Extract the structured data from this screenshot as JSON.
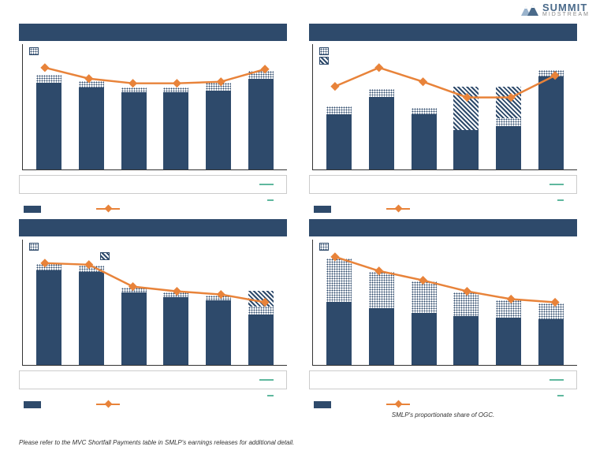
{
  "logo": {
    "summit": "SUMMIT",
    "midstream": "MIDSTREAM"
  },
  "colors": {
    "bar_solid": "#2e4a6b",
    "line": "#e8833a",
    "marker": "#e8833a",
    "accent_green": "#5fb89e"
  },
  "panels": [
    {
      "id": "top-left",
      "legend_top": [
        "dotted"
      ],
      "ymax": 160,
      "bars": [
        {
          "segments": [
            {
              "t": "solid",
              "v": 110
            },
            {
              "t": "dotted",
              "v": 10
            }
          ]
        },
        {
          "segments": [
            {
              "t": "solid",
              "v": 104
            },
            {
              "t": "dotted",
              "v": 8
            }
          ]
        },
        {
          "segments": [
            {
              "t": "solid",
              "v": 98
            },
            {
              "t": "dotted",
              "v": 6
            }
          ]
        },
        {
          "segments": [
            {
              "t": "solid",
              "v": 98
            },
            {
              "t": "dotted",
              "v": 6
            }
          ]
        },
        {
          "segments": [
            {
              "t": "solid",
              "v": 100
            },
            {
              "t": "dotted",
              "v": 10
            }
          ]
        },
        {
          "segments": [
            {
              "t": "solid",
              "v": 115
            },
            {
              "t": "dotted",
              "v": 10
            }
          ]
        }
      ],
      "line": [
        130,
        116,
        110,
        110,
        112,
        128
      ]
    },
    {
      "id": "top-right",
      "legend_top": [
        "dotted",
        "hatch"
      ],
      "ymax": 160,
      "bars": [
        {
          "segments": [
            {
              "t": "solid",
              "v": 70
            },
            {
              "t": "dotted",
              "v": 10
            }
          ]
        },
        {
          "segments": [
            {
              "t": "solid",
              "v": 92
            },
            {
              "t": "dotted",
              "v": 10
            }
          ]
        },
        {
          "segments": [
            {
              "t": "solid",
              "v": 70
            },
            {
              "t": "dotted",
              "v": 8
            }
          ]
        },
        {
          "segments": [
            {
              "t": "solid",
              "v": 50
            },
            {
              "t": "hatch",
              "v": 55
            }
          ]
        },
        {
          "segments": [
            {
              "t": "solid",
              "v": 55
            },
            {
              "t": "dotted",
              "v": 10
            },
            {
              "t": "hatch",
              "v": 40
            }
          ]
        },
        {
          "segments": [
            {
              "t": "solid",
              "v": 118
            },
            {
              "t": "dotted",
              "v": 8
            }
          ]
        }
      ],
      "line": [
        106,
        130,
        112,
        92,
        92,
        120
      ]
    },
    {
      "id": "bottom-left",
      "legend_top": [
        "dotted",
        "hatch_offset"
      ],
      "ymax": 160,
      "bars": [
        {
          "segments": [
            {
              "t": "solid",
              "v": 120
            },
            {
              "t": "dotted",
              "v": 8
            }
          ]
        },
        {
          "segments": [
            {
              "t": "solid",
              "v": 118
            },
            {
              "t": "dotted",
              "v": 8
            }
          ]
        },
        {
          "segments": [
            {
              "t": "solid",
              "v": 92
            },
            {
              "t": "dotted",
              "v": 6
            }
          ]
        },
        {
          "segments": [
            {
              "t": "solid",
              "v": 86
            },
            {
              "t": "dotted",
              "v": 6
            }
          ]
        },
        {
          "segments": [
            {
              "t": "solid",
              "v": 82
            },
            {
              "t": "dotted",
              "v": 6
            }
          ]
        },
        {
          "segments": [
            {
              "t": "solid",
              "v": 64
            },
            {
              "t": "dotted",
              "v": 10
            },
            {
              "t": "hatch",
              "v": 20
            }
          ]
        }
      ],
      "line": [
        130,
        128,
        100,
        94,
        90,
        80
      ]
    },
    {
      "id": "bottom-right",
      "legend_top": [
        "dotted"
      ],
      "ymax": 160,
      "bars": [
        {
          "segments": [
            {
              "t": "solid",
              "v": 80
            },
            {
              "t": "dotted",
              "v": 55
            }
          ]
        },
        {
          "segments": [
            {
              "t": "solid",
              "v": 72
            },
            {
              "t": "dotted",
              "v": 46
            }
          ]
        },
        {
          "segments": [
            {
              "t": "solid",
              "v": 66
            },
            {
              "t": "dotted",
              "v": 40
            }
          ]
        },
        {
          "segments": [
            {
              "t": "solid",
              "v": 62
            },
            {
              "t": "dotted",
              "v": 30
            }
          ]
        },
        {
          "segments": [
            {
              "t": "solid",
              "v": 60
            },
            {
              "t": "dotted",
              "v": 22
            }
          ]
        },
        {
          "segments": [
            {
              "t": "solid",
              "v": 58
            },
            {
              "t": "dotted",
              "v": 20
            }
          ]
        }
      ],
      "line": [
        138,
        120,
        108,
        94,
        84,
        80
      ]
    }
  ],
  "footnote_left": "Please refer to the MVC Shortfall Payments table in SMLP's earnings releases for additional detail.",
  "footnote_right": "SMLP's proportionate share of OGC."
}
